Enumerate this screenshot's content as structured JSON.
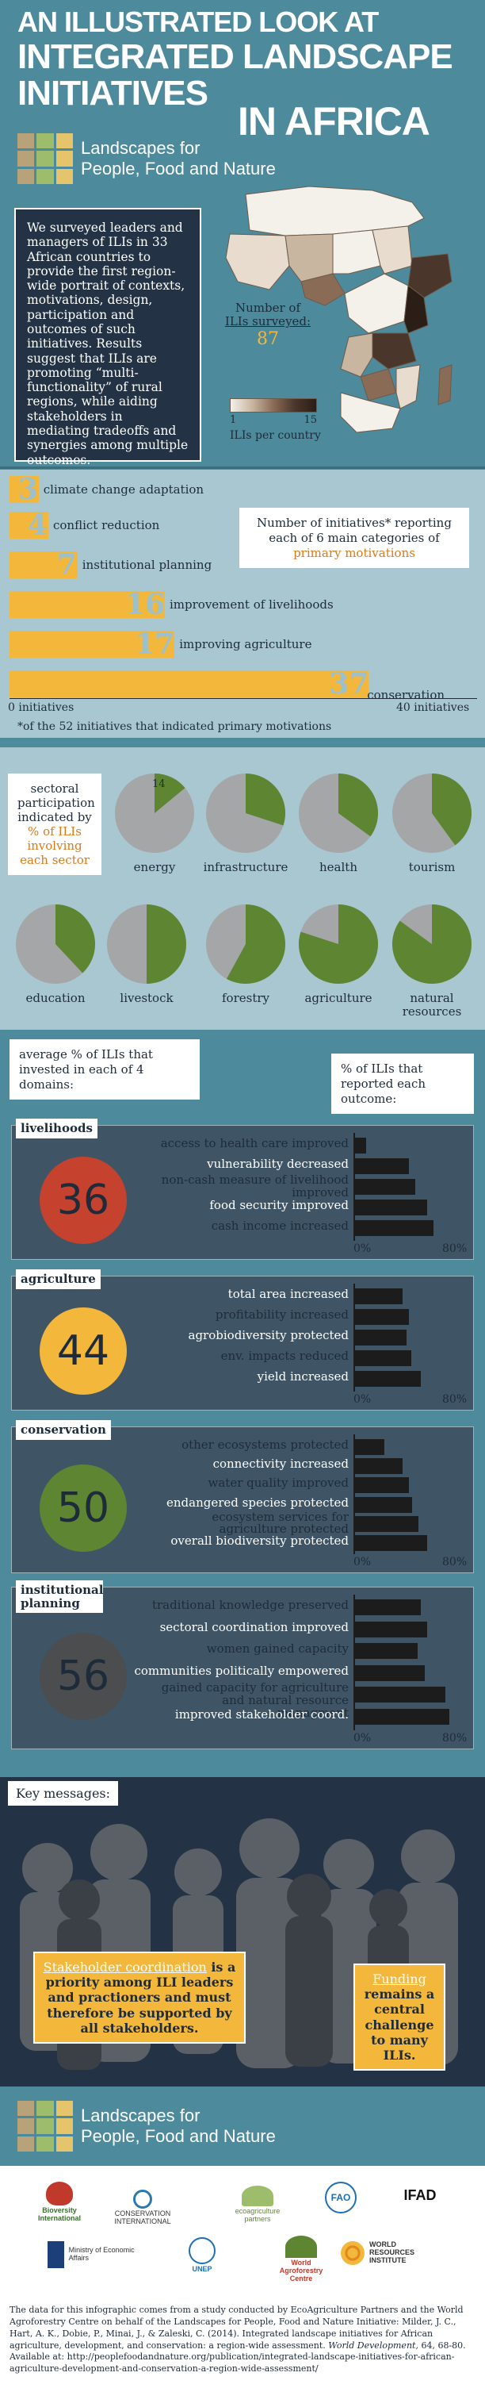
{
  "header": {
    "line1": "AN ILLUSTRATED LOOK AT",
    "line2": "INTEGRATED LANDSCAPE",
    "line3": "INITIATIVES",
    "line4": "IN AFRICA"
  },
  "logo": {
    "line1": "Landscapes for",
    "line2": "People, Food and Nature"
  },
  "intro": {
    "text": "We surveyed leaders and managers of ILIs in 33 African countries to provide the first region-wide portrait of contexts, motivations, design, participation and outcomes of such initiatives. Results suggest that ILIs are promoting “multi-functionality” of rural regions, while aiding stakeholders in mediating tradeoffs and synergies among multiple outcomes."
  },
  "map": {
    "surveyed_label_1": "Number of",
    "surveyed_label_2": "ILIs surveyed:",
    "surveyed_value": "87",
    "legend_min": "1",
    "legend_max": "15",
    "legend_caption": "ILIs per country"
  },
  "motivations": {
    "callout_1": "Number of initiatives* reporting each of 6 main categories of",
    "callout_2": "primary motivations",
    "axis_min": "0 initiatives",
    "axis_max": "40 initiatives",
    "footnote": "*of the 52 initiatives that indicated primary motivations",
    "colors": {
      "bar": "#f3b73c",
      "number": "#9cc1cc"
    }
  },
  "chart_data": [
    {
      "type": "bar",
      "orientation": "horizontal",
      "categories": [
        "climate change adaptation",
        "conflict reduction",
        "institutional planning",
        "improvement of livelihoods",
        "improving agriculture",
        "conservation"
      ],
      "values": [
        3,
        4,
        7,
        16,
        17,
        37
      ],
      "xlim": [
        0,
        40
      ]
    },
    {
      "type": "pie",
      "categories": [
        "energy",
        "infrastructure",
        "health",
        "tourism",
        "education",
        "livestock",
        "forestry",
        "agriculture",
        "natural resources"
      ],
      "values": [
        14,
        30,
        35,
        40,
        38,
        50,
        58,
        80,
        85
      ]
    },
    {
      "type": "bar",
      "orientation": "horizontal",
      "categories": [
        "access to health care improved",
        "vulnerability decreased",
        "non-cash measure of livelihood improved",
        "food security improved",
        "cash income increased"
      ],
      "values": [
        10,
        45,
        50,
        60,
        65
      ],
      "xlim": [
        0,
        80
      ]
    },
    {
      "type": "bar",
      "orientation": "horizontal",
      "categories": [
        "total area increased",
        "profitability increased",
        "agrobiodiversity protected",
        "env. impacts reduced",
        "yield increased"
      ],
      "values": [
        40,
        45,
        43,
        47,
        55
      ],
      "xlim": [
        0,
        80
      ]
    },
    {
      "type": "bar",
      "orientation": "horizontal",
      "categories": [
        "other ecosystems protected",
        "connectivity increased",
        "water quality improved",
        "endangered species protected",
        "ecosystem services for agriculture protected",
        "overall biodiversity protected"
      ],
      "values": [
        25,
        40,
        45,
        48,
        53,
        60
      ],
      "xlim": [
        0,
        80
      ]
    },
    {
      "type": "bar",
      "orientation": "horizontal",
      "categories": [
        "traditional knowledge preserved",
        "sectoral coordination improved",
        "women gained capacity",
        "communities politically empowered",
        "gained capacity for agriculture and natural resource managment",
        "improved stakeholder coord."
      ],
      "values": [
        55,
        60,
        52,
        58,
        75,
        78
      ],
      "xlim": [
        0,
        80
      ]
    }
  ],
  "sectoral": {
    "callout_1": "sectoral participation indicated by",
    "callout_2": "% of ILIs involving each sector",
    "first_value_label": "14",
    "colors": {
      "slice": "#5e8532",
      "base": "#a4a6a8"
    }
  },
  "domains": {
    "left_callout": "average % of ILIs that invested in each of 4 domains:",
    "right_callout": "% of ILIs that reported each outcome:",
    "axis_min": "0%",
    "axis_max": "80%",
    "cards": [
      {
        "name": "livelihoods",
        "value": "36",
        "color": "#c4422e"
      },
      {
        "name": "agriculture",
        "value": "44",
        "color": "#f3b73c"
      },
      {
        "name": "conservation",
        "value": "50",
        "color": "#5e8532"
      },
      {
        "name": "institutional planning",
        "value": "56",
        "color": "#4b4d4f"
      }
    ],
    "label_colors": {
      "dark": "#1d2b3a",
      "light": "#ffffff"
    }
  },
  "key_messages": {
    "title": "Key messages:",
    "left_lead": "Stakeholder coordination",
    "left_rest": "is a priority among ILI leaders and practioners and must therefore be supported by all stakeholders.",
    "right_lead": "Funding",
    "right_rest": "remains a central challenge to many ILIs."
  },
  "footer_logo": {
    "line1": "Landscapes for",
    "line2": "People, Food and Nature"
  },
  "partners": [
    "Bioversity International",
    "CONSERVATION INTERNATIONAL",
    "ecoagriculture partners",
    "FAO",
    "IFAD",
    "Ministry of Economic Affairs",
    "UNEP",
    "World Agroforestry Centre",
    "WORLD RESOURCES INSTITUTE"
  ],
  "citation": {
    "line1": "The data for this infographic comes from a study conducted by EcoAgriculture Partners and the World Agroforestry Centre on behalf of the Landscapes for People, Food and Nature Initiative: Milder, J. C., Hart, A. K., Dobie, P., Minai, J., & Zaleski, C. (2014). Integrated landscape initiatives for African agriculture, development, and conservation: a region-wide assessment.",
    "journal": "World Development,",
    "line2": "64, 68-80. Available at: http://peoplefoodandnature.org/publication/integrated-landscape-initiatives-for-african-agriculture-development-and-conservation-a-region-wide-assessment/"
  }
}
